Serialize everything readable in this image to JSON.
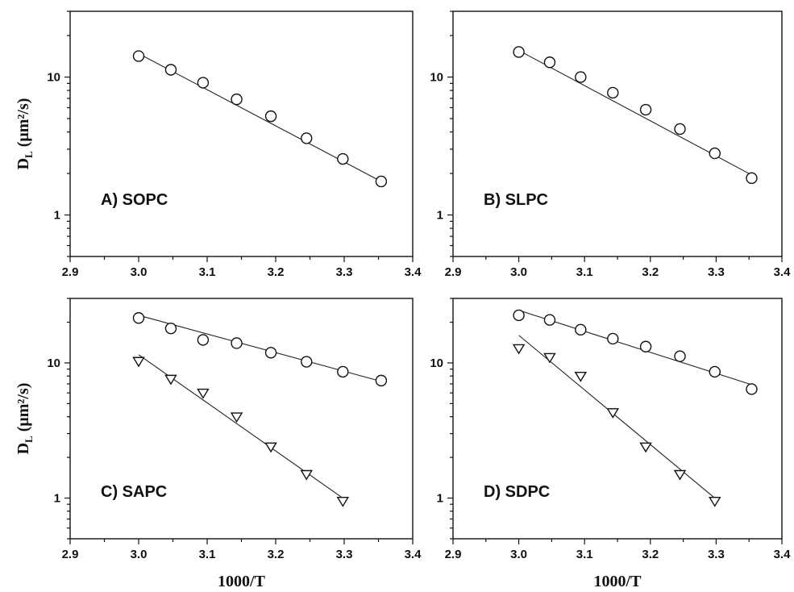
{
  "y_axis_title": "D",
  "y_axis_title_sub": "L",
  "y_axis_title_unit": "(μm²/s)",
  "x_axis_title": "1000/T",
  "chart_data": [
    {
      "type": "scatter",
      "panel_label": "A) SOPC",
      "xlim": [
        2.9,
        3.4
      ],
      "ylim": [
        0.5,
        30
      ],
      "yscale": "log",
      "x_ticks": [
        "2.9",
        "3.0",
        "3.1",
        "3.2",
        "3.3",
        "3.4"
      ],
      "y_ticks": [
        "1",
        "10"
      ],
      "series": [
        {
          "marker": "circle",
          "x": [
            3.0,
            3.047,
            3.094,
            3.143,
            3.193,
            3.245,
            3.298,
            3.354
          ],
          "y": [
            14.2,
            11.3,
            9.1,
            6.9,
            5.2,
            3.6,
            2.55,
            1.75
          ],
          "fit": {
            "x": [
              3.0,
              3.354
            ],
            "y": [
              14.8,
              1.75
            ]
          }
        }
      ]
    },
    {
      "type": "scatter",
      "panel_label": "B) SLPC",
      "xlim": [
        2.9,
        3.4
      ],
      "ylim": [
        0.5,
        30
      ],
      "yscale": "log",
      "x_ticks": [
        "2.9",
        "3.0",
        "3.1",
        "3.2",
        "3.3",
        "3.4"
      ],
      "y_ticks": [
        "1",
        "10"
      ],
      "series": [
        {
          "marker": "circle",
          "x": [
            3.0,
            3.047,
            3.094,
            3.143,
            3.193,
            3.245,
            3.298,
            3.354
          ],
          "y": [
            15.2,
            12.8,
            10.0,
            7.7,
            5.8,
            4.2,
            2.8,
            1.85
          ],
          "fit": {
            "x": [
              3.0,
              3.354
            ],
            "y": [
              15.6,
              1.95
            ]
          }
        }
      ]
    },
    {
      "type": "scatter",
      "panel_label": "C) SAPC",
      "xlim": [
        2.9,
        3.4
      ],
      "ylim": [
        0.5,
        30
      ],
      "yscale": "log",
      "x_ticks": [
        "2.9",
        "3.0",
        "3.1",
        "3.2",
        "3.3",
        "3.4"
      ],
      "y_ticks": [
        "1",
        "10"
      ],
      "series": [
        {
          "marker": "circle",
          "x": [
            3.0,
            3.047,
            3.094,
            3.143,
            3.193,
            3.245,
            3.298,
            3.354
          ],
          "y": [
            21.5,
            18.0,
            14.8,
            14.0,
            11.9,
            10.2,
            8.6,
            7.4
          ],
          "fit": {
            "x": [
              3.0,
              3.354
            ],
            "y": [
              22.5,
              7.3
            ]
          }
        },
        {
          "marker": "triangle-down",
          "x": [
            3.0,
            3.047,
            3.094,
            3.143,
            3.193,
            3.245,
            3.298
          ],
          "y": [
            10.3,
            7.6,
            6.0,
            4.0,
            2.4,
            1.5,
            0.95
          ],
          "fit": {
            "x": [
              3.0,
              3.298
            ],
            "y": [
              11.5,
              1.0
            ]
          }
        }
      ]
    },
    {
      "type": "scatter",
      "panel_label": "D) SDPC",
      "xlim": [
        2.9,
        3.4
      ],
      "ylim": [
        0.5,
        30
      ],
      "yscale": "log",
      "x_ticks": [
        "2.9",
        "3.0",
        "3.1",
        "3.2",
        "3.3",
        "3.4"
      ],
      "y_ticks": [
        "1",
        "10"
      ],
      "series": [
        {
          "marker": "circle",
          "x": [
            3.0,
            3.047,
            3.094,
            3.143,
            3.193,
            3.245,
            3.298,
            3.354
          ],
          "y": [
            22.5,
            20.8,
            17.6,
            15.1,
            13.2,
            11.2,
            8.6,
            6.4
          ],
          "fit": {
            "x": [
              3.0,
              3.354
            ],
            "y": [
              24.5,
              6.9
            ]
          }
        },
        {
          "marker": "triangle-down",
          "x": [
            3.0,
            3.047,
            3.094,
            3.143,
            3.193,
            3.245,
            3.298
          ],
          "y": [
            12.8,
            11.0,
            8.0,
            4.3,
            2.4,
            1.5,
            0.95
          ],
          "fit": {
            "x": [
              3.0,
              3.298
            ],
            "y": [
              16.0,
              1.0
            ]
          }
        }
      ]
    }
  ]
}
